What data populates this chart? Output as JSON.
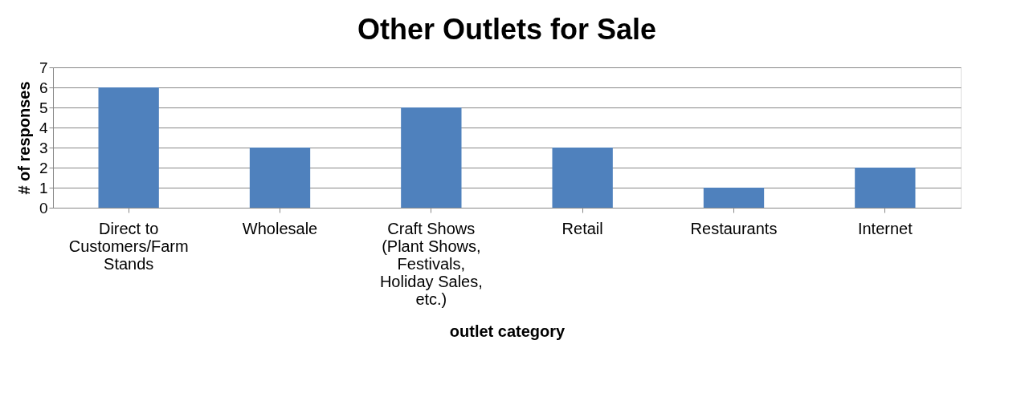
{
  "chart_data": {
    "type": "bar",
    "title": "Other Outlets for Sale",
    "xlabel": "outlet category",
    "ylabel": "# of responses",
    "categories": [
      "Direct to Customers/Farm Stands",
      "Wholesale",
      "Craft Shows (Plant Shows, Festivals, Holiday Sales, etc.)",
      "Retail",
      "Restaurants",
      "Internet"
    ],
    "values": [
      6,
      3,
      5,
      3,
      1,
      2
    ],
    "color": "#4f81bd",
    "ylim": [
      0,
      7
    ],
    "yticks": [
      0,
      1,
      2,
      3,
      4,
      5,
      6,
      7
    ],
    "grid": "y"
  }
}
